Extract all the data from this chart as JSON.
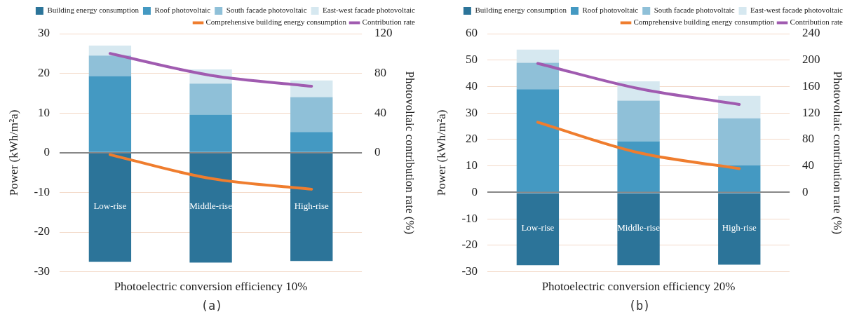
{
  "chart_data": [
    {
      "type": "bar",
      "stacked": true,
      "xlabel": "Photoelectric conversion efficiency 10%",
      "ylabel": "Power (kWh/m²a)",
      "y2label": "Photovoltaic contribution rate (%)",
      "categories": [
        "Low-rise",
        "Middle-rise",
        "High-rise"
      ],
      "series": [
        {
          "name": "Building energy consumption",
          "color": "#2c7499",
          "values": [
            -27.5,
            -27.7,
            -27.3
          ]
        },
        {
          "name": "Roof photovoltaic",
          "color": "#4499c2",
          "values": [
            19.3,
            9.6,
            5.2
          ]
        },
        {
          "name": "South facade photovoltaic",
          "color": "#8fc0d8",
          "values": [
            5.2,
            7.8,
            8.8
          ]
        },
        {
          "name": "East-west facade photovoltaic",
          "color": "#d6e8f0",
          "values": [
            2.5,
            3.6,
            4.2
          ]
        },
        {
          "name": "Comprehensive building energy consumption",
          "type": "line",
          "color": "#ef7d2e",
          "values": [
            -0.5,
            -6.5,
            -9.2
          ]
        },
        {
          "name": "Contribution rate",
          "type": "line",
          "axis": "y2",
          "color": "#a05bb0",
          "values": [
            100,
            78,
            67
          ]
        }
      ],
      "ylim": [
        -30,
        30
      ],
      "yticks": [
        -30,
        -20,
        -10,
        0,
        10,
        20,
        30
      ],
      "y2lim": [
        -120,
        120
      ],
      "y2ticks": [
        0,
        40,
        80,
        120
      ],
      "grid": "y",
      "legend": "top right",
      "marker": "none",
      "annotations": [
        "(a)"
      ]
    },
    {
      "type": "bar",
      "stacked": true,
      "xlabel": "Photoelectric conversion efficiency 20%",
      "ylabel": "Power (kWh/m²a)",
      "y2label": "Photovoltaic contribution rate (%)",
      "categories": [
        "Low-rise",
        "Middle-rise",
        "High-rise"
      ],
      "series": [
        {
          "name": "Building energy consumption",
          "color": "#2c7499",
          "values": [
            -27.5,
            -27.5,
            -27.3
          ]
        },
        {
          "name": "Roof photovoltaic",
          "color": "#4499c2",
          "values": [
            39,
            19.3,
            10.2
          ]
        },
        {
          "name": "South facade photovoltaic",
          "color": "#8fc0d8",
          "values": [
            10,
            15.4,
            17.8
          ]
        },
        {
          "name": "East-west facade photovoltaic",
          "color": "#d6e8f0",
          "values": [
            5,
            7.3,
            8.5
          ]
        },
        {
          "name": "Comprehensive building energy consumption",
          "type": "line",
          "color": "#ef7d2e",
          "values": [
            26.5,
            15,
            9
          ]
        },
        {
          "name": "Contribution rate",
          "type": "line",
          "axis": "y2",
          "color": "#a05bb0",
          "values": [
            195,
            157,
            133
          ]
        }
      ],
      "ylim": [
        -30,
        60
      ],
      "yticks": [
        -30,
        -20,
        -10,
        0,
        10,
        20,
        30,
        40,
        50,
        60
      ],
      "y2lim": [
        -120,
        240
      ],
      "y2ticks": [
        0,
        40,
        80,
        120,
        160,
        200,
        240
      ],
      "grid": "y",
      "legend": "top right",
      "marker": "none",
      "annotations": [
        "(b)"
      ]
    }
  ]
}
